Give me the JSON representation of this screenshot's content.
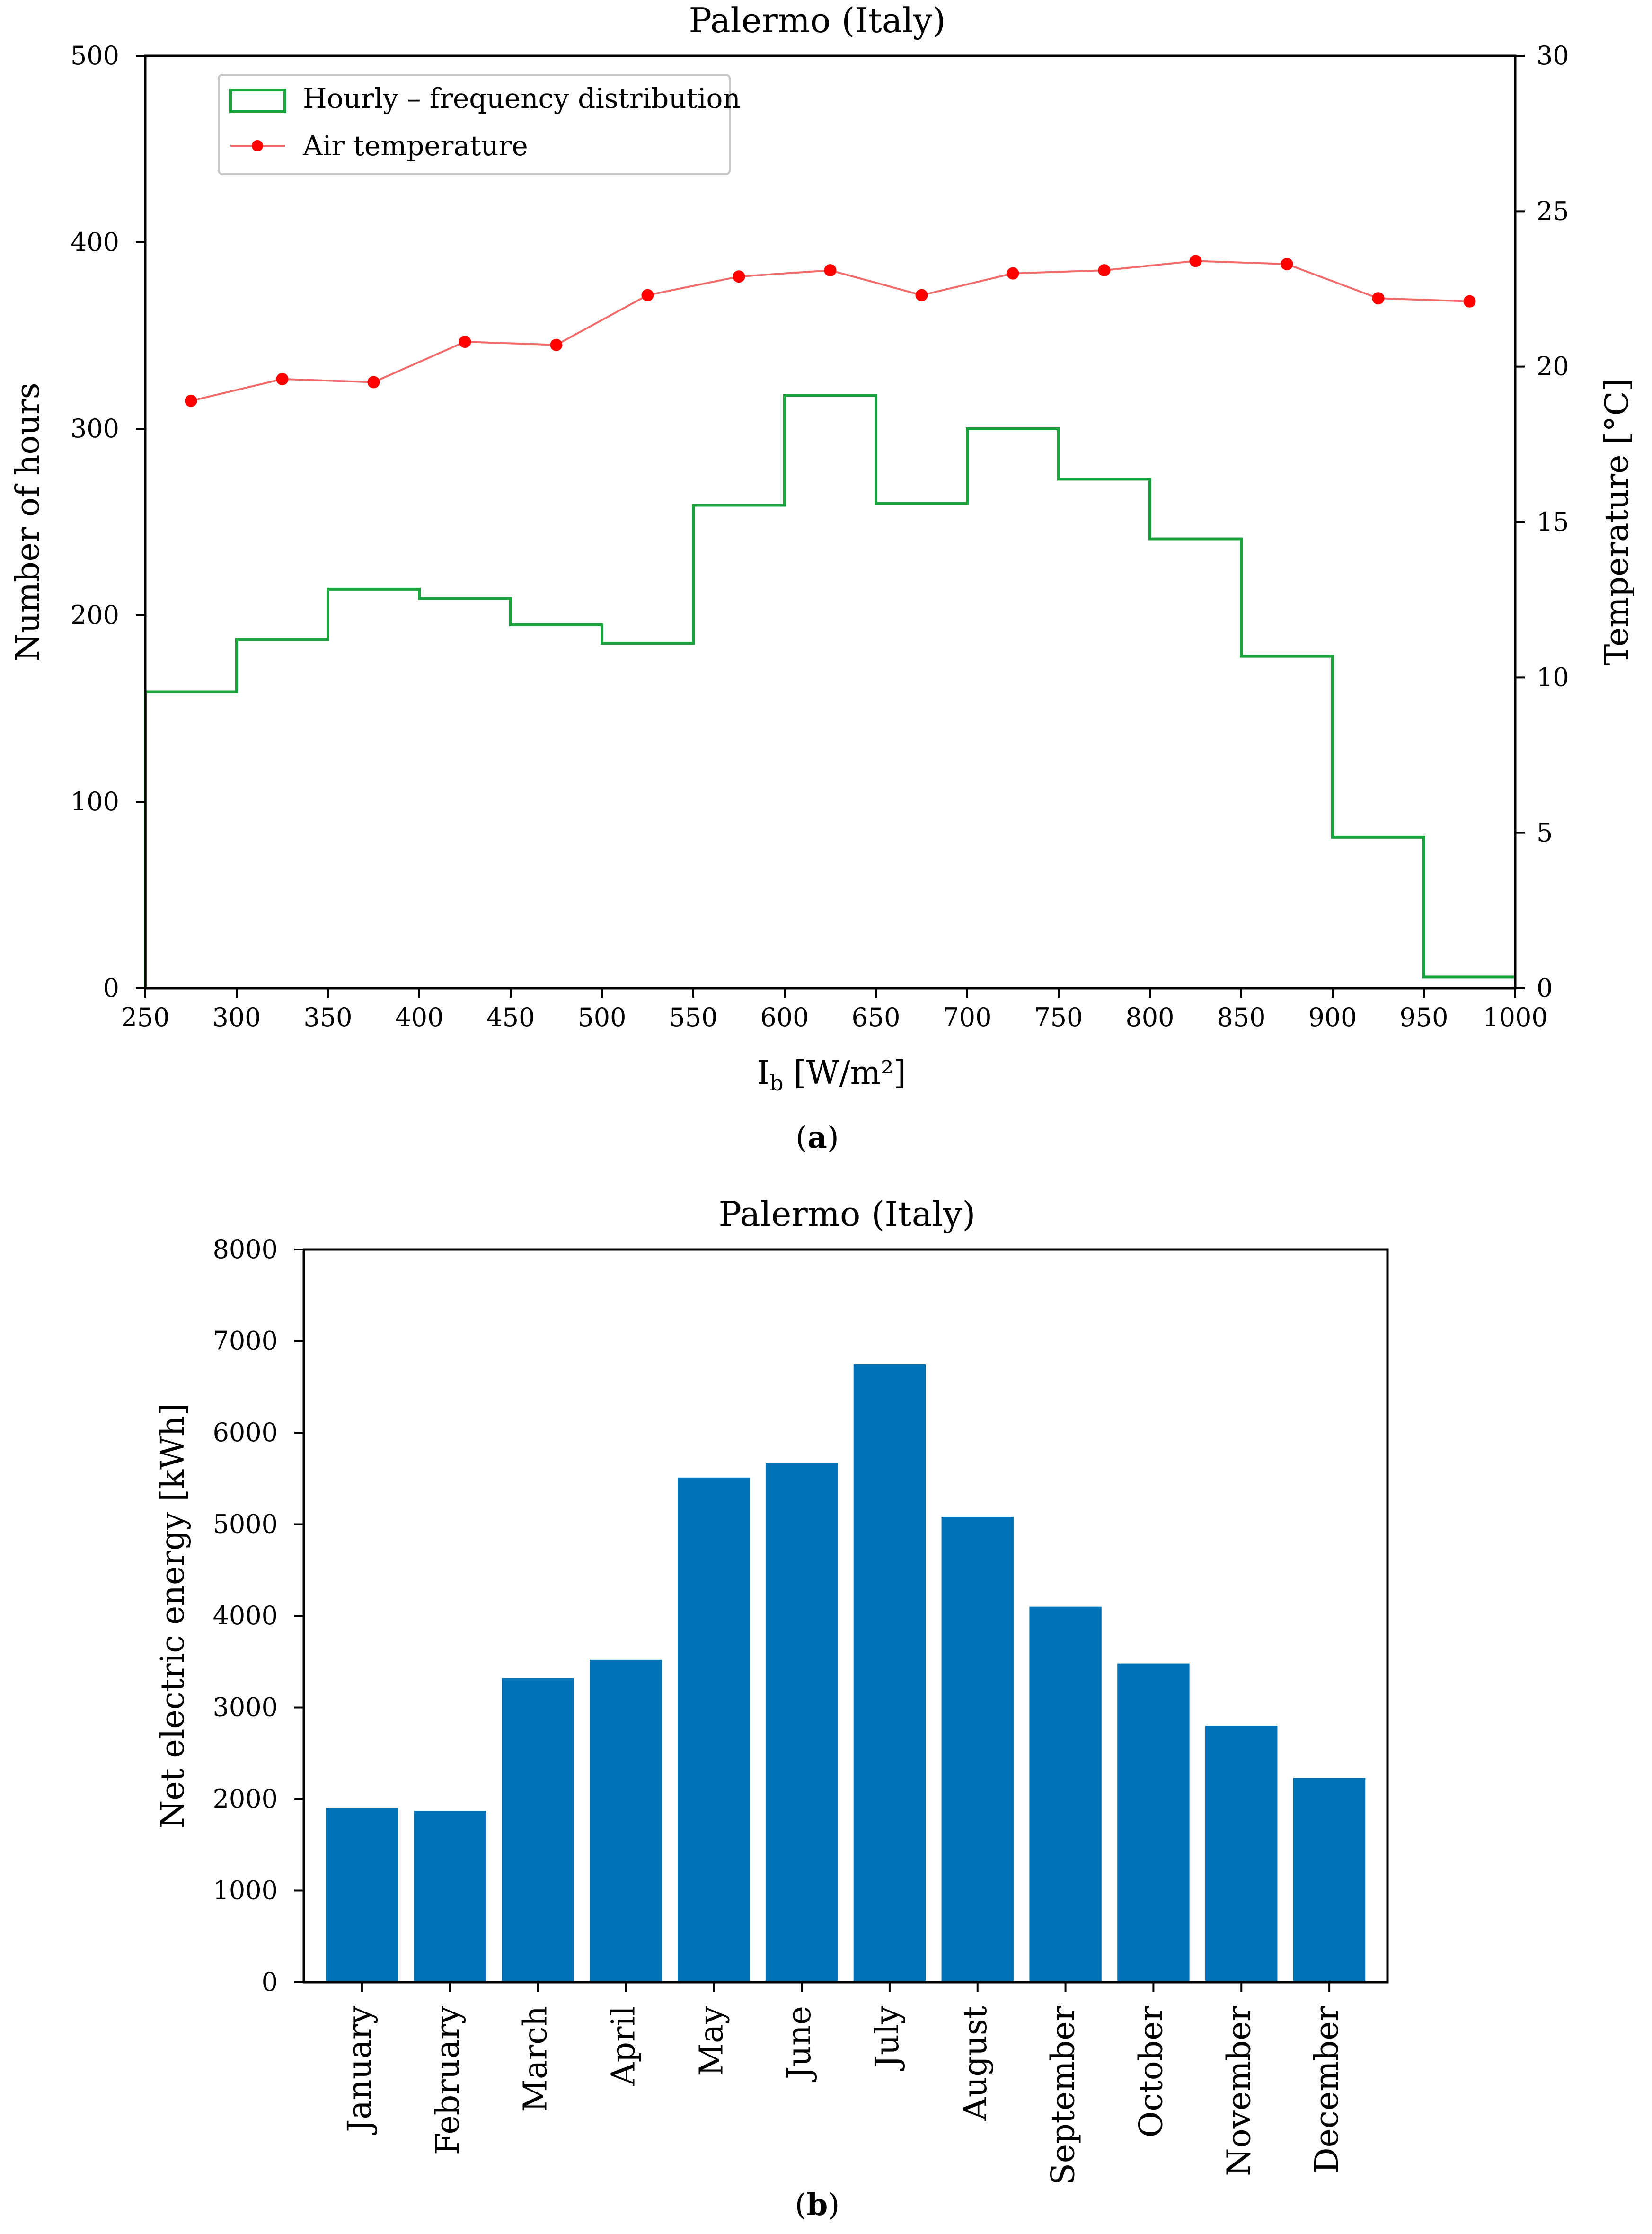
{
  "chart_data": [
    {
      "type": "line",
      "title": "Palermo (Italy)",
      "caption_letter": "a",
      "xlabel": "I",
      "xlabel_sub": "b",
      "xlabel_unit": " [W/m²]",
      "ylabel": "Number of hours",
      "y2label": "Temperature [°C]",
      "xlim": [
        250,
        1000
      ],
      "ylim": [
        0,
        500
      ],
      "y2lim": [
        0,
        30
      ],
      "xticks": [
        250,
        300,
        350,
        400,
        450,
        500,
        550,
        600,
        650,
        700,
        750,
        800,
        850,
        900,
        950,
        1000
      ],
      "yticks": [
        0,
        100,
        200,
        300,
        400,
        500
      ],
      "y2ticks": [
        0,
        5,
        10,
        15,
        20,
        25,
        30
      ],
      "legend": {
        "position": "top-left",
        "entries": [
          "Hourly – frequency distribution",
          "Air temperature"
        ]
      },
      "series": [
        {
          "name": "Hourly – frequency distribution",
          "kind": "step",
          "axis": "left",
          "color": "#1aa33c",
          "bin_edges": [
            250,
            300,
            350,
            400,
            450,
            500,
            550,
            600,
            650,
            700,
            750,
            800,
            850,
            900,
            950,
            1000
          ],
          "values": [
            159,
            187,
            214,
            209,
            195,
            185,
            259,
            318,
            260,
            300,
            273,
            241,
            178,
            81,
            6
          ]
        },
        {
          "name": "Air temperature",
          "kind": "line-markers",
          "axis": "right",
          "color": "#ff0000",
          "line_color": "#f26b6b",
          "x": [
            275,
            325,
            375,
            425,
            475,
            525,
            575,
            625,
            675,
            725,
            775,
            825,
            875,
            925,
            975
          ],
          "values": [
            18.9,
            19.6,
            19.5,
            20.8,
            20.7,
            22.3,
            22.9,
            23.1,
            22.3,
            23.0,
            23.1,
            23.4,
            23.3,
            22.2,
            22.1
          ]
        }
      ]
    },
    {
      "type": "bar",
      "title": "Palermo (Italy)",
      "caption_letter": "b",
      "xlabel": "",
      "ylabel": "Net electric energy [kWh]",
      "ylim": [
        0,
        8000
      ],
      "yticks": [
        0,
        1000,
        2000,
        3000,
        4000,
        5000,
        6000,
        7000,
        8000
      ],
      "color": "#0072b5",
      "categories": [
        "January",
        "February",
        "March",
        "April",
        "May",
        "June",
        "July",
        "August",
        "September",
        "October",
        "November",
        "December"
      ],
      "values": [
        1900,
        1870,
        3320,
        3520,
        5510,
        5670,
        6750,
        5080,
        4100,
        3480,
        2800,
        2230
      ]
    }
  ]
}
